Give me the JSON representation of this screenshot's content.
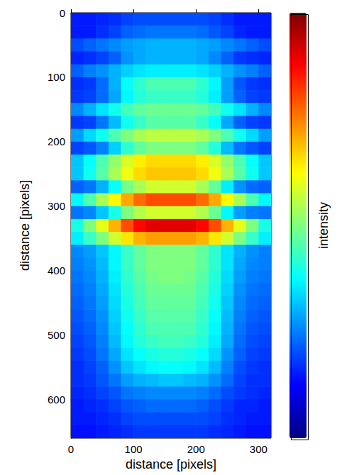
{
  "chart_data": {
    "type": "heatmap",
    "x_label": "distance [pixels]",
    "y_label": "distance [pixels]",
    "colorbar_label": "intensity",
    "xlim": [
      0,
      320
    ],
    "ylim": [
      0,
      660
    ],
    "xticks": [
      0,
      100,
      200,
      300
    ],
    "yticks": [
      0,
      100,
      200,
      300,
      400,
      500,
      600
    ],
    "color_range": [
      0,
      1
    ],
    "x": [
      0,
      20,
      40,
      60,
      80,
      100,
      120,
      140,
      160,
      180,
      200,
      220,
      240,
      260,
      280,
      300
    ],
    "y": [
      0,
      20,
      40,
      60,
      80,
      100,
      120,
      140,
      160,
      180,
      200,
      220,
      240,
      260,
      280,
      300,
      320,
      340,
      360,
      380,
      400,
      420,
      440,
      460,
      480,
      500,
      520,
      540,
      560,
      580,
      600,
      620,
      640
    ],
    "cells": [
      [
        0.15,
        0.15,
        0.16,
        0.17,
        0.19,
        0.2,
        0.2,
        0.2,
        0.2,
        0.2,
        0.2,
        0.19,
        0.17,
        0.15,
        0.15,
        0.15
      ],
      [
        0.15,
        0.15,
        0.17,
        0.19,
        0.22,
        0.23,
        0.24,
        0.24,
        0.24,
        0.24,
        0.23,
        0.21,
        0.19,
        0.16,
        0.15,
        0.15
      ],
      [
        0.2,
        0.22,
        0.24,
        0.26,
        0.28,
        0.29,
        0.3,
        0.3,
        0.3,
        0.3,
        0.29,
        0.28,
        0.26,
        0.24,
        0.22,
        0.2
      ],
      [
        0.16,
        0.17,
        0.19,
        0.22,
        0.27,
        0.29,
        0.3,
        0.3,
        0.3,
        0.3,
        0.29,
        0.26,
        0.22,
        0.18,
        0.17,
        0.16
      ],
      [
        0.22,
        0.25,
        0.27,
        0.3,
        0.33,
        0.35,
        0.36,
        0.36,
        0.36,
        0.36,
        0.35,
        0.33,
        0.3,
        0.27,
        0.25,
        0.22
      ],
      [
        0.17,
        0.18,
        0.23,
        0.3,
        0.38,
        0.42,
        0.45,
        0.45,
        0.45,
        0.45,
        0.42,
        0.37,
        0.28,
        0.21,
        0.18,
        0.17
      ],
      [
        0.18,
        0.19,
        0.23,
        0.29,
        0.37,
        0.41,
        0.43,
        0.43,
        0.43,
        0.43,
        0.41,
        0.36,
        0.28,
        0.22,
        0.19,
        0.18
      ],
      [
        0.26,
        0.3,
        0.35,
        0.39,
        0.44,
        0.47,
        0.48,
        0.48,
        0.48,
        0.48,
        0.47,
        0.44,
        0.39,
        0.35,
        0.3,
        0.26
      ],
      [
        0.18,
        0.19,
        0.24,
        0.31,
        0.39,
        0.43,
        0.46,
        0.46,
        0.46,
        0.46,
        0.43,
        0.38,
        0.29,
        0.22,
        0.19,
        0.18
      ],
      [
        0.28,
        0.34,
        0.39,
        0.45,
        0.5,
        0.54,
        0.56,
        0.56,
        0.56,
        0.56,
        0.54,
        0.5,
        0.45,
        0.39,
        0.34,
        0.28
      ],
      [
        0.19,
        0.21,
        0.25,
        0.33,
        0.42,
        0.47,
        0.5,
        0.5,
        0.5,
        0.5,
        0.47,
        0.41,
        0.31,
        0.24,
        0.21,
        0.19
      ],
      [
        0.32,
        0.38,
        0.45,
        0.52,
        0.59,
        0.64,
        0.66,
        0.66,
        0.66,
        0.66,
        0.64,
        0.59,
        0.52,
        0.45,
        0.38,
        0.32
      ],
      [
        0.32,
        0.39,
        0.46,
        0.54,
        0.61,
        0.66,
        0.68,
        0.68,
        0.68,
        0.68,
        0.66,
        0.61,
        0.54,
        0.46,
        0.39,
        0.32
      ],
      [
        0.22,
        0.24,
        0.3,
        0.38,
        0.49,
        0.54,
        0.58,
        0.58,
        0.58,
        0.58,
        0.54,
        0.47,
        0.36,
        0.27,
        0.23,
        0.22
      ],
      [
        0.37,
        0.45,
        0.54,
        0.63,
        0.71,
        0.77,
        0.8,
        0.8,
        0.8,
        0.8,
        0.77,
        0.71,
        0.63,
        0.54,
        0.45,
        0.37
      ],
      [
        0.24,
        0.26,
        0.32,
        0.4,
        0.5,
        0.55,
        0.58,
        0.58,
        0.58,
        0.58,
        0.55,
        0.48,
        0.37,
        0.28,
        0.25,
        0.24
      ],
      [
        0.4,
        0.5,
        0.6,
        0.7,
        0.8,
        0.87,
        0.9,
        0.9,
        0.9,
        0.9,
        0.87,
        0.8,
        0.7,
        0.6,
        0.5,
        0.4
      ],
      [
        0.36,
        0.43,
        0.5,
        0.58,
        0.65,
        0.7,
        0.72,
        0.72,
        0.72,
        0.72,
        0.7,
        0.65,
        0.58,
        0.5,
        0.43,
        0.36
      ],
      [
        0.26,
        0.28,
        0.32,
        0.37,
        0.43,
        0.47,
        0.5,
        0.5,
        0.5,
        0.5,
        0.47,
        0.42,
        0.35,
        0.3,
        0.27,
        0.25
      ],
      [
        0.25,
        0.27,
        0.31,
        0.37,
        0.43,
        0.47,
        0.5,
        0.5,
        0.5,
        0.5,
        0.47,
        0.42,
        0.35,
        0.29,
        0.26,
        0.25
      ],
      [
        0.24,
        0.26,
        0.3,
        0.36,
        0.42,
        0.46,
        0.49,
        0.5,
        0.5,
        0.49,
        0.46,
        0.41,
        0.34,
        0.28,
        0.25,
        0.24
      ],
      [
        0.23,
        0.25,
        0.29,
        0.35,
        0.41,
        0.45,
        0.48,
        0.48,
        0.48,
        0.48,
        0.45,
        0.4,
        0.33,
        0.27,
        0.24,
        0.23
      ],
      [
        0.22,
        0.24,
        0.28,
        0.34,
        0.4,
        0.44,
        0.47,
        0.47,
        0.47,
        0.47,
        0.44,
        0.39,
        0.32,
        0.26,
        0.23,
        0.22
      ],
      [
        0.21,
        0.23,
        0.27,
        0.33,
        0.39,
        0.43,
        0.46,
        0.46,
        0.46,
        0.46,
        0.43,
        0.38,
        0.31,
        0.25,
        0.22,
        0.21
      ],
      [
        0.2,
        0.22,
        0.26,
        0.32,
        0.38,
        0.42,
        0.45,
        0.45,
        0.45,
        0.45,
        0.42,
        0.37,
        0.3,
        0.24,
        0.21,
        0.2
      ],
      [
        0.19,
        0.21,
        0.25,
        0.31,
        0.37,
        0.41,
        0.43,
        0.44,
        0.44,
        0.43,
        0.41,
        0.36,
        0.29,
        0.23,
        0.2,
        0.19
      ],
      [
        0.18,
        0.2,
        0.24,
        0.29,
        0.35,
        0.38,
        0.4,
        0.41,
        0.41,
        0.4,
        0.38,
        0.34,
        0.27,
        0.22,
        0.19,
        0.18
      ],
      [
        0.17,
        0.19,
        0.22,
        0.27,
        0.32,
        0.35,
        0.37,
        0.38,
        0.38,
        0.37,
        0.35,
        0.31,
        0.25,
        0.2,
        0.18,
        0.17
      ],
      [
        0.17,
        0.18,
        0.21,
        0.24,
        0.28,
        0.3,
        0.31,
        0.32,
        0.32,
        0.31,
        0.3,
        0.27,
        0.23,
        0.19,
        0.17,
        0.17
      ],
      [
        0.16,
        0.17,
        0.19,
        0.21,
        0.24,
        0.25,
        0.26,
        0.26,
        0.26,
        0.26,
        0.25,
        0.23,
        0.2,
        0.18,
        0.17,
        0.16
      ],
      [
        0.15,
        0.16,
        0.17,
        0.19,
        0.21,
        0.22,
        0.23,
        0.23,
        0.23,
        0.23,
        0.22,
        0.2,
        0.18,
        0.16,
        0.16,
        0.15
      ],
      [
        0.15,
        0.15,
        0.16,
        0.17,
        0.19,
        0.2,
        0.2,
        0.2,
        0.2,
        0.2,
        0.2,
        0.19,
        0.17,
        0.16,
        0.15,
        0.15
      ],
      [
        0.14,
        0.14,
        0.15,
        0.16,
        0.17,
        0.18,
        0.18,
        0.18,
        0.18,
        0.18,
        0.18,
        0.17,
        0.16,
        0.15,
        0.14,
        0.14
      ]
    ]
  }
}
